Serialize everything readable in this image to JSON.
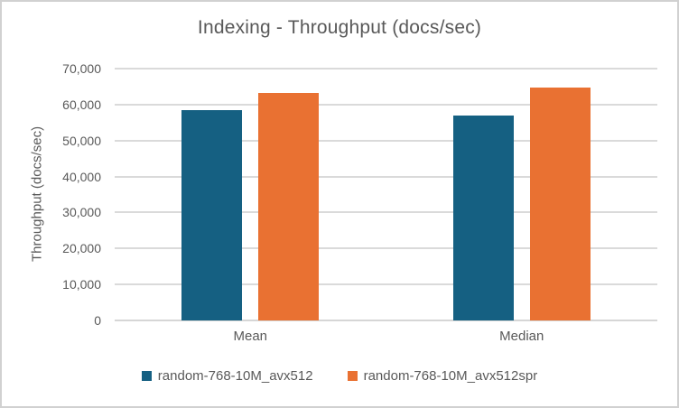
{
  "chart_data": {
    "type": "bar",
    "title": "Indexing - Throughput (docs/sec)",
    "ylabel": "Throughput (docs/sec)",
    "xlabel": "",
    "categories": [
      "Mean",
      "Median"
    ],
    "series": [
      {
        "name": "random-768-10M_avx512",
        "color": "#156082",
        "values": [
          58500,
          57000
        ]
      },
      {
        "name": "random-768-10M_avx512spr",
        "color": "#E97132",
        "values": [
          63300,
          64800
        ]
      }
    ],
    "ylim": [
      0,
      70000
    ],
    "ytick_step": 10000,
    "ytick_labels": [
      "0",
      "10,000",
      "20,000",
      "30,000",
      "40,000",
      "50,000",
      "60,000",
      "70,000"
    ],
    "grid": true,
    "legend_position": "bottom"
  },
  "colors": {
    "series_1": "#156082",
    "series_2": "#E97132",
    "gridline": "#DADADA",
    "text": "#595959",
    "frame_border": "#D1D1D1",
    "background": "#FFFFFF"
  }
}
